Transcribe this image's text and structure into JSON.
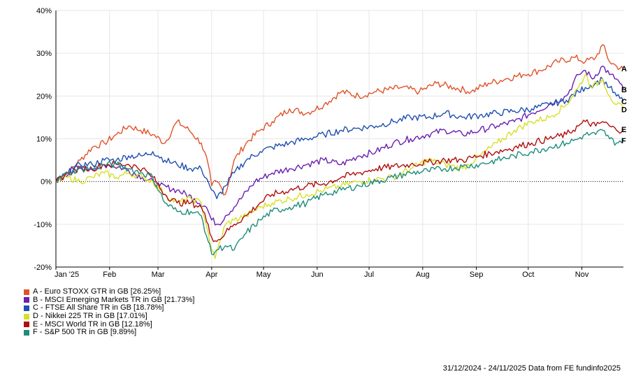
{
  "chart_data": {
    "type": "line",
    "title": "",
    "xlabel": "",
    "ylabel": "",
    "ylim": [
      -20,
      40
    ],
    "yticks": [
      "40%",
      "30%",
      "20%",
      "10%",
      "0%",
      "-10%",
      "-20%"
    ],
    "ytick_values": [
      40,
      30,
      20,
      10,
      0,
      -10,
      -20
    ],
    "x_labels": [
      "Jan '25",
      "Feb",
      "Mar",
      "Apr",
      "May",
      "Jun",
      "Jul",
      "Aug",
      "Sep",
      "Oct",
      "Nov"
    ],
    "x_label_days": [
      0,
      31,
      59,
      90,
      120,
      151,
      181,
      212,
      243,
      273,
      304
    ],
    "x_range_days": [
      0,
      328
    ],
    "grid": true,
    "legend_position": "bottom-left",
    "series": [
      {
        "name": "A - Euro STOXX GTR in GB [26.25%]",
        "end_label": "A",
        "color": "#e0532a",
        "points": [
          [
            0,
            0
          ],
          [
            7,
            2
          ],
          [
            14,
            5
          ],
          [
            21,
            8
          ],
          [
            28,
            9
          ],
          [
            35,
            11
          ],
          [
            42,
            13
          ],
          [
            49,
            12
          ],
          [
            56,
            11
          ],
          [
            63,
            9
          ],
          [
            70,
            14
          ],
          [
            77,
            12
          ],
          [
            84,
            9
          ],
          [
            88,
            4
          ],
          [
            90,
            -1
          ],
          [
            93,
            0
          ],
          [
            98,
            -3
          ],
          [
            103,
            5
          ],
          [
            110,
            9
          ],
          [
            118,
            12
          ],
          [
            125,
            14
          ],
          [
            135,
            17
          ],
          [
            145,
            16
          ],
          [
            155,
            18
          ],
          [
            165,
            21
          ],
          [
            175,
            20
          ],
          [
            185,
            21
          ],
          [
            200,
            22
          ],
          [
            210,
            21
          ],
          [
            220,
            23
          ],
          [
            230,
            22
          ],
          [
            240,
            21
          ],
          [
            250,
            23
          ],
          [
            260,
            24
          ],
          [
            270,
            25
          ],
          [
            280,
            26
          ],
          [
            290,
            28
          ],
          [
            300,
            29
          ],
          [
            306,
            28
          ],
          [
            312,
            29
          ],
          [
            316,
            32
          ],
          [
            320,
            28
          ],
          [
            324,
            27
          ],
          [
            328,
            26.25
          ]
        ]
      },
      {
        "name": "B - MSCI Emerging Markets TR in GB [21.73%]",
        "end_label": "B",
        "color": "#6a1fb0",
        "points": [
          [
            0,
            0
          ],
          [
            10,
            3
          ],
          [
            20,
            3
          ],
          [
            30,
            4
          ],
          [
            40,
            3
          ],
          [
            50,
            1
          ],
          [
            60,
            -1
          ],
          [
            70,
            -2
          ],
          [
            80,
            -4
          ],
          [
            87,
            -6
          ],
          [
            90,
            -9
          ],
          [
            94,
            -10
          ],
          [
            98,
            -8
          ],
          [
            105,
            -5
          ],
          [
            115,
            0
          ],
          [
            125,
            2
          ],
          [
            135,
            3
          ],
          [
            145,
            4
          ],
          [
            155,
            5
          ],
          [
            165,
            4
          ],
          [
            175,
            6
          ],
          [
            185,
            7
          ],
          [
            195,
            9
          ],
          [
            205,
            10
          ],
          [
            215,
            11
          ],
          [
            225,
            12
          ],
          [
            235,
            11
          ],
          [
            245,
            12
          ],
          [
            255,
            13
          ],
          [
            265,
            14
          ],
          [
            275,
            16
          ],
          [
            285,
            18
          ],
          [
            295,
            20
          ],
          [
            302,
            25
          ],
          [
            306,
            26
          ],
          [
            310,
            24
          ],
          [
            316,
            27
          ],
          [
            320,
            25
          ],
          [
            324,
            24
          ],
          [
            328,
            21.73
          ]
        ]
      },
      {
        "name": "C - FTSE All Share TR in GB [18.78%]",
        "end_label": "C",
        "color": "#1f4fb0",
        "points": [
          [
            0,
            0
          ],
          [
            7,
            2
          ],
          [
            14,
            4
          ],
          [
            21,
            4
          ],
          [
            28,
            5
          ],
          [
            35,
            5
          ],
          [
            42,
            6
          ],
          [
            50,
            6
          ],
          [
            56,
            7
          ],
          [
            63,
            5
          ],
          [
            70,
            4
          ],
          [
            78,
            3
          ],
          [
            84,
            3
          ],
          [
            88,
            0
          ],
          [
            90,
            -2
          ],
          [
            93,
            -4
          ],
          [
            98,
            -1
          ],
          [
            103,
            2
          ],
          [
            110,
            5
          ],
          [
            118,
            7
          ],
          [
            125,
            8
          ],
          [
            135,
            9
          ],
          [
            145,
            10
          ],
          [
            155,
            11
          ],
          [
            165,
            12
          ],
          [
            175,
            12.5
          ],
          [
            185,
            13
          ],
          [
            195,
            14
          ],
          [
            205,
            15
          ],
          [
            215,
            15
          ],
          [
            225,
            16
          ],
          [
            235,
            15
          ],
          [
            245,
            15.5
          ],
          [
            255,
            16
          ],
          [
            265,
            16.5
          ],
          [
            275,
            17
          ],
          [
            285,
            18
          ],
          [
            295,
            19
          ],
          [
            302,
            21
          ],
          [
            306,
            22
          ],
          [
            312,
            23
          ],
          [
            316,
            24
          ],
          [
            320,
            22
          ],
          [
            324,
            20
          ],
          [
            328,
            18.78
          ]
        ]
      },
      {
        "name": "D - Nikkei 225 TR in GB [17.01%]",
        "end_label": "D",
        "color": "#d7df2a",
        "points": [
          [
            0,
            0
          ],
          [
            7,
            1
          ],
          [
            14,
            0
          ],
          [
            21,
            1
          ],
          [
            28,
            2
          ],
          [
            35,
            1
          ],
          [
            42,
            2
          ],
          [
            50,
            1
          ],
          [
            56,
            0
          ],
          [
            63,
            -3
          ],
          [
            70,
            -5
          ],
          [
            78,
            -4
          ],
          [
            84,
            -5
          ],
          [
            88,
            -12
          ],
          [
            90,
            -16
          ],
          [
            92,
            -18
          ],
          [
            94,
            -15
          ],
          [
            98,
            -10
          ],
          [
            103,
            -9
          ],
          [
            110,
            -8
          ],
          [
            118,
            -6
          ],
          [
            125,
            -5
          ],
          [
            135,
            -4
          ],
          [
            145,
            -3
          ],
          [
            155,
            -2
          ],
          [
            165,
            -1
          ],
          [
            175,
            0
          ],
          [
            185,
            0.5
          ],
          [
            195,
            1
          ],
          [
            205,
            3
          ],
          [
            215,
            5
          ],
          [
            225,
            4
          ],
          [
            235,
            3
          ],
          [
            245,
            6
          ],
          [
            255,
            9
          ],
          [
            265,
            12
          ],
          [
            275,
            14
          ],
          [
            285,
            15
          ],
          [
            295,
            18
          ],
          [
            302,
            22
          ],
          [
            306,
            25
          ],
          [
            310,
            22
          ],
          [
            316,
            24
          ],
          [
            320,
            20
          ],
          [
            324,
            18
          ],
          [
            328,
            17.01
          ]
        ]
      },
      {
        "name": "E - MSCI World TR in GB [12.18%]",
        "end_label": "E",
        "color": "#b00d0d",
        "points": [
          [
            0,
            0
          ],
          [
            7,
            2
          ],
          [
            14,
            3
          ],
          [
            21,
            3
          ],
          [
            28,
            4
          ],
          [
            35,
            4
          ],
          [
            42,
            4
          ],
          [
            50,
            3
          ],
          [
            56,
            1
          ],
          [
            63,
            -3
          ],
          [
            70,
            -5
          ],
          [
            78,
            -5
          ],
          [
            84,
            -6
          ],
          [
            88,
            -10
          ],
          [
            90,
            -13
          ],
          [
            93,
            -14
          ],
          [
            98,
            -12
          ],
          [
            103,
            -10
          ],
          [
            110,
            -8
          ],
          [
            118,
            -5
          ],
          [
            125,
            -3
          ],
          [
            135,
            -2
          ],
          [
            145,
            -1
          ],
          [
            155,
            -0.5
          ],
          [
            165,
            1
          ],
          [
            175,
            2
          ],
          [
            185,
            3
          ],
          [
            195,
            3.5
          ],
          [
            205,
            4
          ],
          [
            215,
            4.5
          ],
          [
            225,
            5
          ],
          [
            235,
            5
          ],
          [
            245,
            6
          ],
          [
            255,
            7
          ],
          [
            265,
            8
          ],
          [
            275,
            9
          ],
          [
            285,
            10
          ],
          [
            295,
            11
          ],
          [
            302,
            13
          ],
          [
            306,
            14
          ],
          [
            312,
            13
          ],
          [
            316,
            14
          ],
          [
            320,
            13
          ],
          [
            324,
            12
          ],
          [
            328,
            12.18
          ]
        ]
      },
      {
        "name": "F - S&P 500 TR in GB [9.89%]",
        "end_label": "F",
        "color": "#1e8c7e",
        "points": [
          [
            0,
            0
          ],
          [
            7,
            2
          ],
          [
            14,
            3
          ],
          [
            21,
            3
          ],
          [
            28,
            4
          ],
          [
            35,
            4
          ],
          [
            42,
            3
          ],
          [
            50,
            2
          ],
          [
            56,
            1
          ],
          [
            63,
            -5
          ],
          [
            70,
            -7
          ],
          [
            78,
            -7
          ],
          [
            84,
            -8
          ],
          [
            88,
            -14
          ],
          [
            90,
            -17
          ],
          [
            93,
            -16
          ],
          [
            98,
            -15
          ],
          [
            103,
            -16
          ],
          [
            110,
            -12
          ],
          [
            118,
            -9
          ],
          [
            125,
            -7
          ],
          [
            135,
            -6
          ],
          [
            145,
            -5
          ],
          [
            155,
            -3
          ],
          [
            165,
            -2
          ],
          [
            175,
            -1
          ],
          [
            185,
            0
          ],
          [
            195,
            1
          ],
          [
            205,
            2
          ],
          [
            215,
            2.5
          ],
          [
            225,
            3
          ],
          [
            235,
            3.5
          ],
          [
            245,
            4
          ],
          [
            255,
            5
          ],
          [
            265,
            6
          ],
          [
            275,
            7
          ],
          [
            285,
            8
          ],
          [
            295,
            9
          ],
          [
            302,
            10
          ],
          [
            306,
            11
          ],
          [
            312,
            11
          ],
          [
            316,
            12
          ],
          [
            320,
            10
          ],
          [
            324,
            9
          ],
          [
            328,
            9.89
          ]
        ]
      }
    ],
    "footer": "31/12/2024 - 24/11/2025 Data from FE fundinfo2025"
  }
}
